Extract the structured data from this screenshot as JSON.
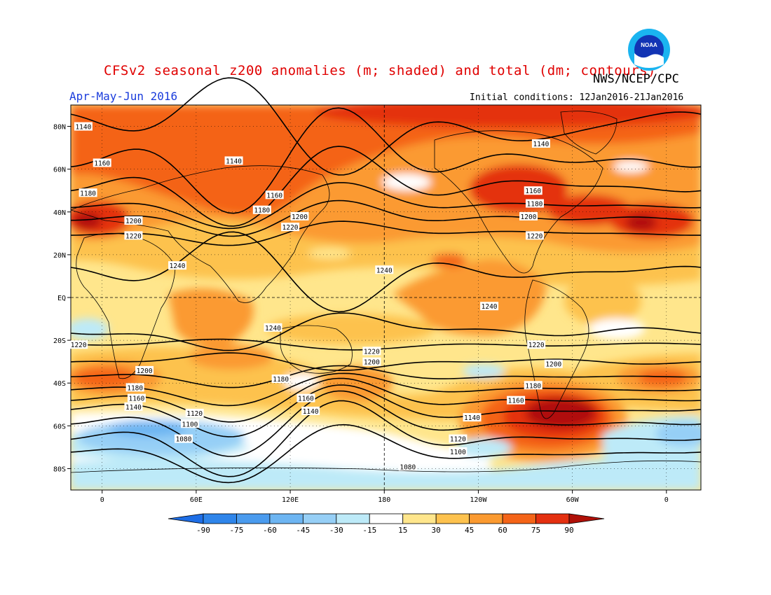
{
  "header": {
    "title": "CFSv2 seasonal z200 anomalies (m; shaded) and total (dm; contours)",
    "agency": "NWS/NCEP/CPC",
    "season": "Apr-May-Jun 2016",
    "initial_conditions": "Initial conditions: 12Jan2016-21Jan2016",
    "logo_text": "NOAA"
  },
  "axes": {
    "lat_labels": [
      "80N",
      "60N",
      "40N",
      "20N",
      "EQ",
      "20S",
      "40S",
      "60S",
      "80S"
    ],
    "lon_labels": [
      "0",
      "60E",
      "120E",
      "180",
      "120W",
      "60W",
      "0"
    ]
  },
  "contour_labels": [
    {
      "text": "1140",
      "lon": -12,
      "lat": 80
    },
    {
      "text": "1160",
      "lon": 0,
      "lat": 63
    },
    {
      "text": "1180",
      "lon": -9,
      "lat": 49
    },
    {
      "text": "1200",
      "lon": 20,
      "lat": 36
    },
    {
      "text": "1220",
      "lon": 20,
      "lat": 29
    },
    {
      "text": "1140",
      "lon": 84,
      "lat": 64
    },
    {
      "text": "1160",
      "lon": 110,
      "lat": 48
    },
    {
      "text": "1180",
      "lon": 102,
      "lat": 41
    },
    {
      "text": "1200",
      "lon": 126,
      "lat": 38
    },
    {
      "text": "1220",
      "lon": 120,
      "lat": 33
    },
    {
      "text": "1240",
      "lon": 48,
      "lat": 15
    },
    {
      "text": "1240",
      "lon": 180,
      "lat": 13
    },
    {
      "text": "1240",
      "lon": -113,
      "lat": -4
    },
    {
      "text": "1240",
      "lon": 109,
      "lat": -14
    },
    {
      "text": "1140",
      "lon": -80,
      "lat": 72
    },
    {
      "text": "1160",
      "lon": -85,
      "lat": 50
    },
    {
      "text": "1180",
      "lon": -84,
      "lat": 44
    },
    {
      "text": "1200",
      "lon": -88,
      "lat": 38
    },
    {
      "text": "1220",
      "lon": -84,
      "lat": 29
    },
    {
      "text": "1220",
      "lon": -15,
      "lat": -22
    },
    {
      "text": "1200",
      "lon": 27,
      "lat": -34
    },
    {
      "text": "1180",
      "lon": 21,
      "lat": -42
    },
    {
      "text": "1160",
      "lon": 22,
      "lat": -47
    },
    {
      "text": "1140",
      "lon": 20,
      "lat": -51
    },
    {
      "text": "1120",
      "lon": 59,
      "lat": -54
    },
    {
      "text": "1100",
      "lon": 56,
      "lat": -59
    },
    {
      "text": "1080",
      "lon": 52,
      "lat": -66
    },
    {
      "text": "1220",
      "lon": 172,
      "lat": -25
    },
    {
      "text": "1200",
      "lon": 172,
      "lat": -30
    },
    {
      "text": "1180",
      "lon": 114,
      "lat": -38
    },
    {
      "text": "1160",
      "lon": 130,
      "lat": -47
    },
    {
      "text": "1140",
      "lon": 133,
      "lat": -53
    },
    {
      "text": "1220",
      "lon": -83,
      "lat": -22
    },
    {
      "text": "1200",
      "lon": -72,
      "lat": -31
    },
    {
      "text": "1180",
      "lon": -85,
      "lat": -41
    },
    {
      "text": "1160",
      "lon": -96,
      "lat": -48
    },
    {
      "text": "1140",
      "lon": -124,
      "lat": -56
    },
    {
      "text": "1120",
      "lon": -133,
      "lat": -66
    },
    {
      "text": "1100",
      "lon": -133,
      "lat": -72
    },
    {
      "text": "1080",
      "lon": -165,
      "lat": -79
    }
  ],
  "legend": {
    "ticks": [
      "-90",
      "-75",
      "-60",
      "-45",
      "-30",
      "-15",
      "15",
      "30",
      "45",
      "60",
      "75",
      "90"
    ],
    "colors": [
      "#1e6ee6",
      "#2f85ea",
      "#4a9bee",
      "#6db5f2",
      "#96cff6",
      "#bdeaf8",
      "#ffffff",
      "#ffe68c",
      "#fdc24e",
      "#fb9a30",
      "#f46418",
      "#e43010",
      "#b01008"
    ]
  },
  "colors": {
    "title": "#e00000",
    "season": "#1a3cdc",
    "logo_outer": "#1ab4f0",
    "logo_inner": "#1234b4"
  }
}
